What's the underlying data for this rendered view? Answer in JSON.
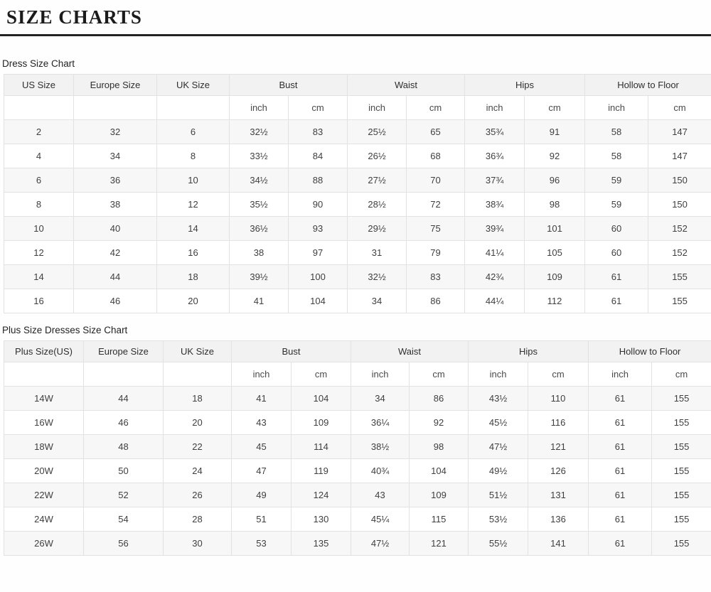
{
  "page": {
    "title": "SIZE CHARTS"
  },
  "tables": [
    {
      "label": "Dress Size Chart",
      "columns": [
        "US Size",
        "Europe Size",
        "UK Size",
        "Bust",
        "Waist",
        "Hips",
        "Hollow to Floor"
      ],
      "unit_headers": [
        "inch",
        "cm"
      ],
      "rows": [
        [
          "2",
          "32",
          "6",
          "32½",
          "83",
          "25½",
          "65",
          "35¾",
          "91",
          "58",
          "147"
        ],
        [
          "4",
          "34",
          "8",
          "33½",
          "84",
          "26½",
          "68",
          "36¾",
          "92",
          "58",
          "147"
        ],
        [
          "6",
          "36",
          "10",
          "34½",
          "88",
          "27½",
          "70",
          "37¾",
          "96",
          "59",
          "150"
        ],
        [
          "8",
          "38",
          "12",
          "35½",
          "90",
          "28½",
          "72",
          "38¾",
          "98",
          "59",
          "150"
        ],
        [
          "10",
          "40",
          "14",
          "36½",
          "93",
          "29½",
          "75",
          "39¾",
          "101",
          "60",
          "152"
        ],
        [
          "12",
          "42",
          "16",
          "38",
          "97",
          "31",
          "79",
          "41¼",
          "105",
          "60",
          "152"
        ],
        [
          "14",
          "44",
          "18",
          "39½",
          "100",
          "32½",
          "83",
          "42¾",
          "109",
          "61",
          "155"
        ],
        [
          "16",
          "46",
          "20",
          "41",
          "104",
          "34",
          "86",
          "44¼",
          "112",
          "61",
          "155"
        ]
      ]
    },
    {
      "label": "Plus Size Dresses Size Chart",
      "columns": [
        "Plus Size(US)",
        "Europe Size",
        "UK Size",
        "Bust",
        "Waist",
        "Hips",
        "Hollow to Floor"
      ],
      "unit_headers": [
        "inch",
        "cm"
      ],
      "rows": [
        [
          "14W",
          "44",
          "18",
          "41",
          "104",
          "34",
          "86",
          "43½",
          "110",
          "61",
          "155"
        ],
        [
          "16W",
          "46",
          "20",
          "43",
          "109",
          "36¼",
          "92",
          "45½",
          "116",
          "61",
          "155"
        ],
        [
          "18W",
          "48",
          "22",
          "45",
          "114",
          "38½",
          "98",
          "47½",
          "121",
          "61",
          "155"
        ],
        [
          "20W",
          "50",
          "24",
          "47",
          "119",
          "40¾",
          "104",
          "49½",
          "126",
          "61",
          "155"
        ],
        [
          "22W",
          "52",
          "26",
          "49",
          "124",
          "43",
          "109",
          "51½",
          "131",
          "61",
          "155"
        ],
        [
          "24W",
          "54",
          "28",
          "51",
          "130",
          "45¼",
          "115",
          "53½",
          "136",
          "61",
          "155"
        ],
        [
          "26W",
          "56",
          "30",
          "53",
          "135",
          "47½",
          "121",
          "55½",
          "141",
          "61",
          "155"
        ]
      ]
    }
  ],
  "layout_colors": {
    "divider": "#232323",
    "header_bg": "#f2f2f2",
    "stripe_bg": "#f7f7f7",
    "border": "#e2e2e2"
  }
}
